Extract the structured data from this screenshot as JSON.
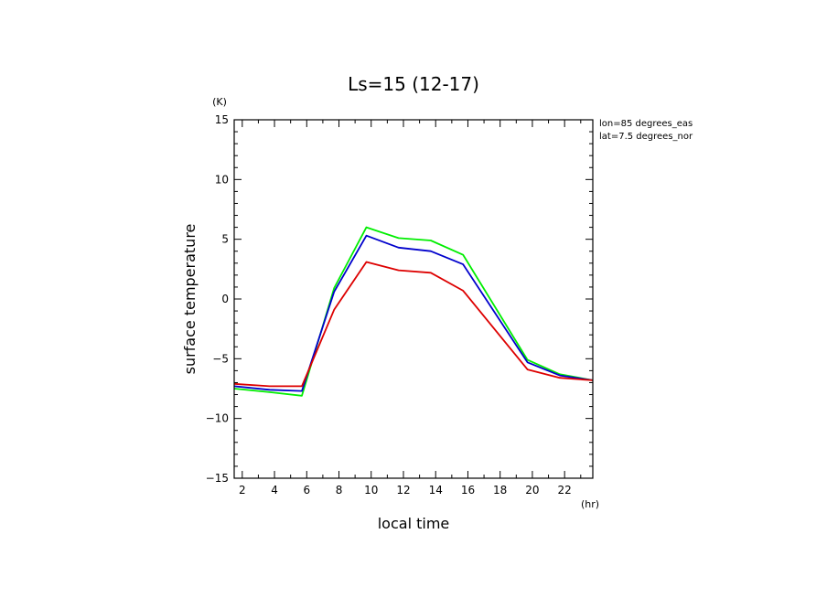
{
  "chart_data": {
    "type": "line",
    "title": "Ls=15 (12-17)",
    "xlabel": "local time",
    "ylabel": "surface temperature",
    "x_unit": "(hr)",
    "y_unit": "(K)",
    "annotations": [
      "lon=85 degrees_eas",
      "lat=7.5 degrees_nor"
    ],
    "xlim": [
      1.5,
      23.75
    ],
    "ylim": [
      -15,
      15
    ],
    "xticks": [
      2,
      4,
      6,
      8,
      10,
      12,
      14,
      16,
      18,
      20,
      22
    ],
    "yticks": [
      -15,
      -10,
      -5,
      0,
      5,
      10,
      15
    ],
    "grid": false,
    "x": [
      1.5,
      3.7,
      5.7,
      7.7,
      9.7,
      11.7,
      13.7,
      15.7,
      19.7,
      21.7,
      23.75
    ],
    "series": [
      {
        "color": "#00ee00",
        "values": [
          -7.5,
          -7.8,
          -8.1,
          0.9,
          6.0,
          5.1,
          4.9,
          3.7,
          -5.1,
          -6.3,
          -6.8
        ]
      },
      {
        "color": "#0000cc",
        "values": [
          -7.3,
          -7.6,
          -7.7,
          0.6,
          5.3,
          4.3,
          4.0,
          2.9,
          -5.3,
          -6.4,
          -6.8
        ]
      },
      {
        "color": "#dd0000",
        "values": [
          -7.1,
          -7.3,
          -7.3,
          -0.9,
          3.1,
          2.4,
          2.2,
          0.7,
          -5.9,
          -6.6,
          -6.8
        ]
      }
    ]
  }
}
